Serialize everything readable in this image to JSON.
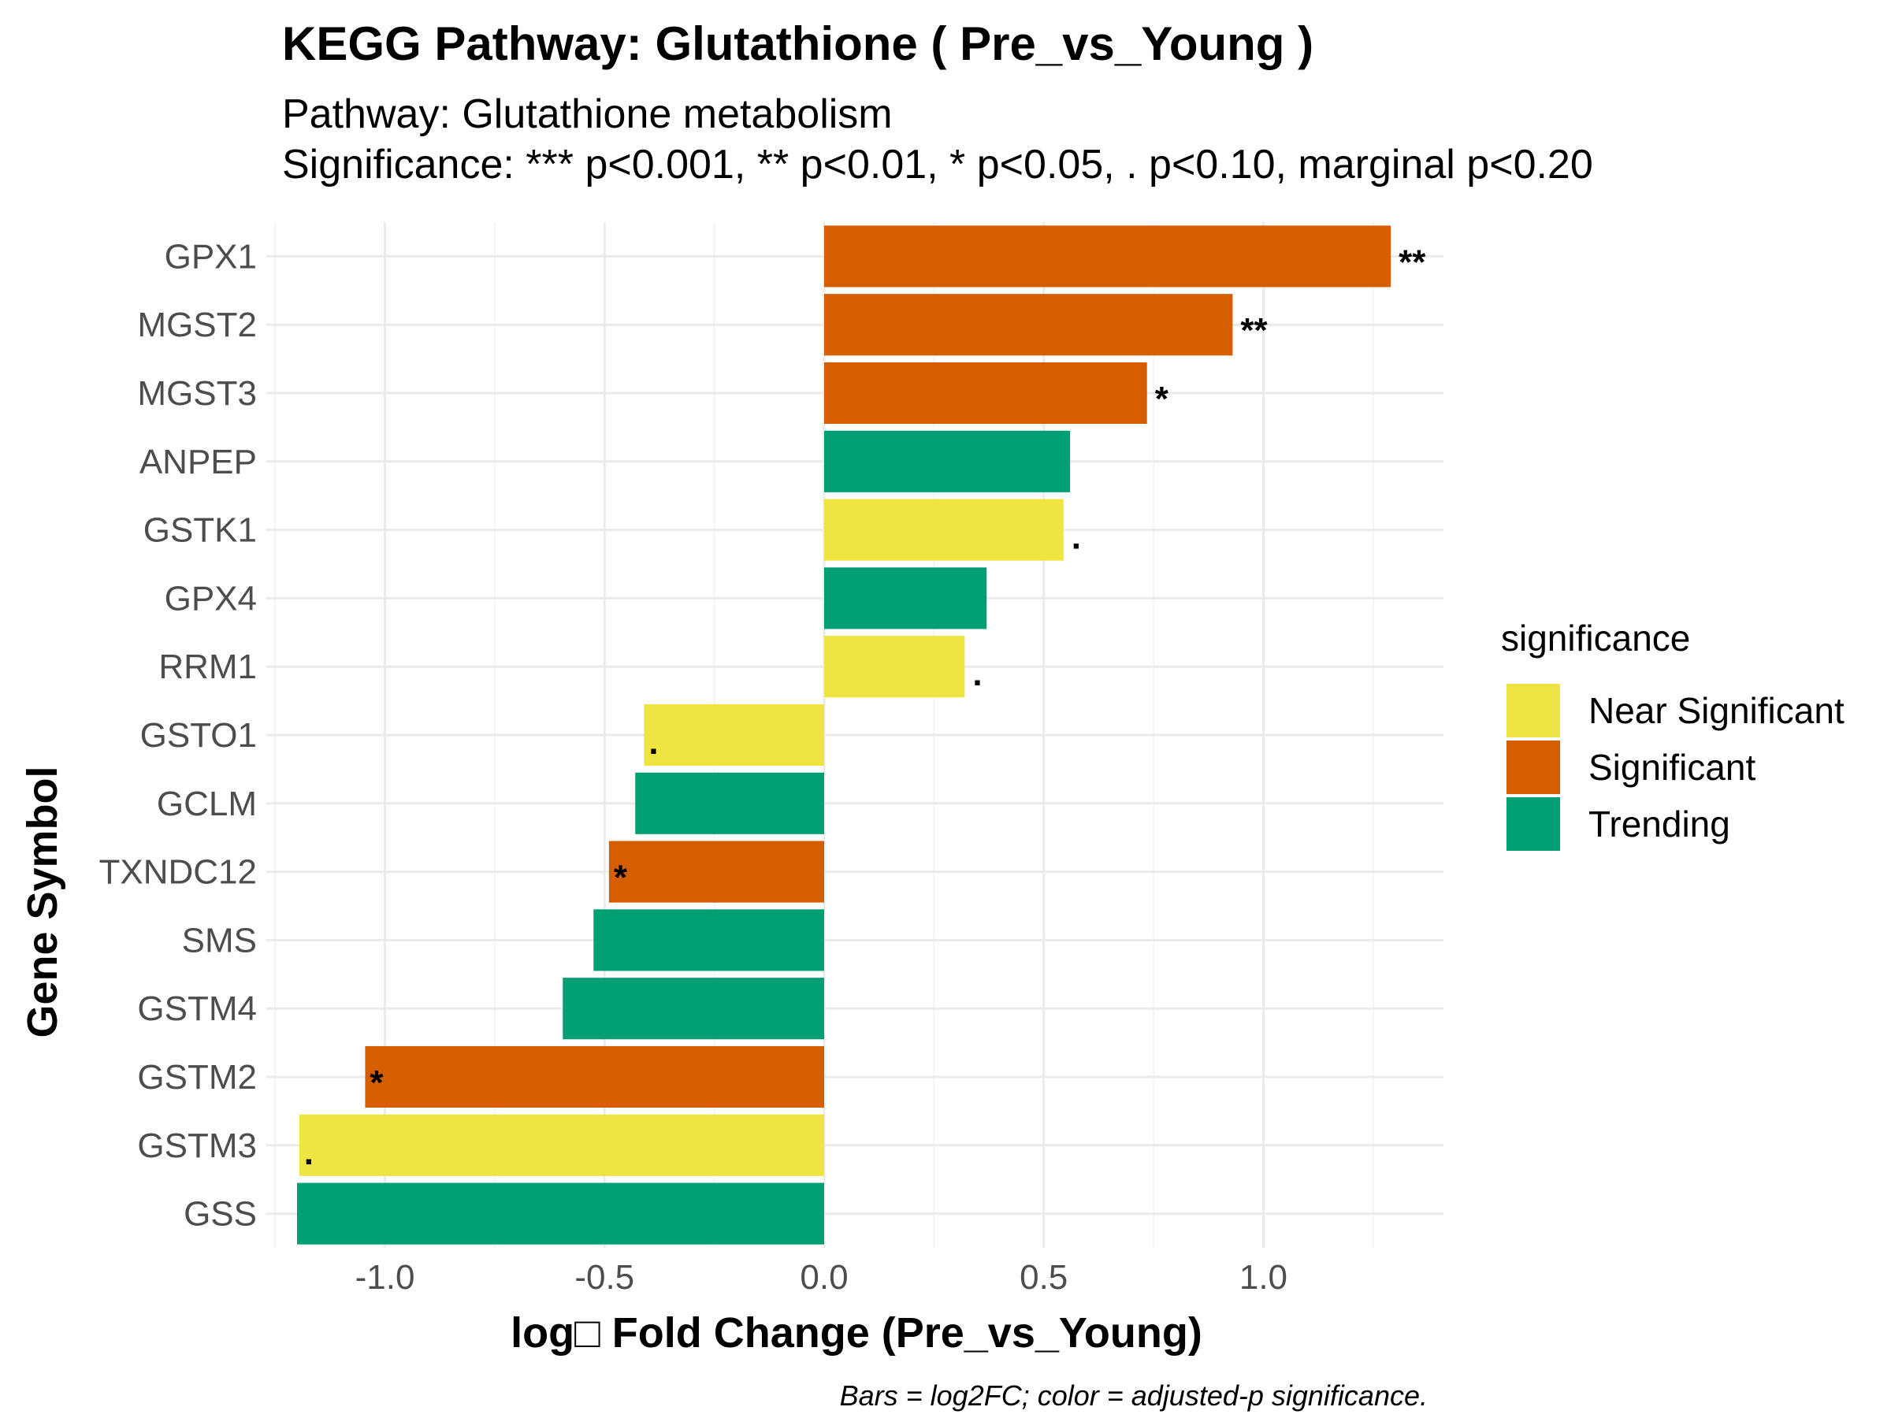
{
  "chart_data": {
    "type": "bar",
    "orientation": "horizontal",
    "title": "KEGG Pathway: Glutathione ( Pre_vs_Young )",
    "subtitle_lines": [
      "Pathway: Glutathione metabolism",
      "Significance: *** p<0.001, ** p<0.01, * p<0.05, . p<0.10, marginal p<0.20"
    ],
    "xlabel": "log□ Fold Change (Pre_vs_Young)",
    "ylabel": "Gene Symbol",
    "caption": "Bars = log2FC; color = adjusted-p significance.",
    "xlim": [
      -1.27,
      1.41
    ],
    "x_ticks": [
      -1.0,
      -0.5,
      0.0,
      0.5,
      1.0
    ],
    "x_tick_labels": [
      "-1.0",
      "-0.5",
      "0.0",
      "0.5",
      "1.0"
    ],
    "grid": true,
    "legend": {
      "title": "significance",
      "position": "right",
      "entries": [
        {
          "label": "Near Significant",
          "color": "#F0E442"
        },
        {
          "label": "Significant",
          "color": "#D55E00"
        },
        {
          "label": "Trending",
          "color": "#009E73"
        }
      ]
    },
    "bars": [
      {
        "gene": "GPX1",
        "value": 1.29,
        "significance": "Significant",
        "label": "**"
      },
      {
        "gene": "MGST2",
        "value": 0.93,
        "significance": "Significant",
        "label": "**"
      },
      {
        "gene": "MGST3",
        "value": 0.735,
        "significance": "Significant",
        "label": "*"
      },
      {
        "gene": "ANPEP",
        "value": 0.56,
        "significance": "Trending",
        "label": ""
      },
      {
        "gene": "GSTK1",
        "value": 0.545,
        "significance": "Near Significant",
        "label": "."
      },
      {
        "gene": "GPX4",
        "value": 0.37,
        "significance": "Trending",
        "label": ""
      },
      {
        "gene": "RRM1",
        "value": 0.32,
        "significance": "Near Significant",
        "label": "."
      },
      {
        "gene": "GSTO1",
        "value": -0.41,
        "significance": "Near Significant",
        "label": "."
      },
      {
        "gene": "GCLM",
        "value": -0.43,
        "significance": "Trending",
        "label": ""
      },
      {
        "gene": "TXNDC12",
        "value": -0.49,
        "significance": "Significant",
        "label": "*"
      },
      {
        "gene": "SMS",
        "value": -0.525,
        "significance": "Trending",
        "label": ""
      },
      {
        "gene": "GSTM4",
        "value": -0.595,
        "significance": "Trending",
        "label": ""
      },
      {
        "gene": "GSTM2",
        "value": -1.045,
        "significance": "Significant",
        "label": "*"
      },
      {
        "gene": "GSTM3",
        "value": -1.195,
        "significance": "Near Significant",
        "label": "."
      },
      {
        "gene": "GSS",
        "value": -1.2,
        "significance": "Trending",
        "label": ""
      }
    ]
  }
}
